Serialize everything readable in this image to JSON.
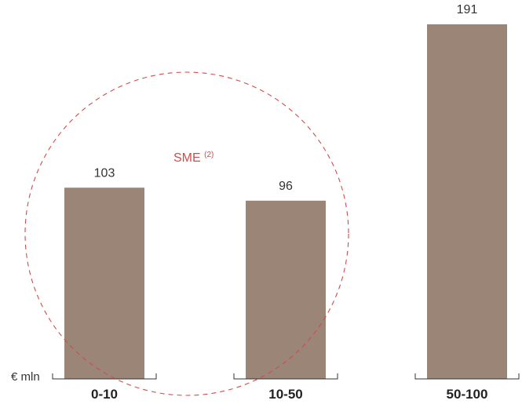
{
  "chart_data": {
    "type": "bar",
    "unit_label": "€ mln",
    "categories": [
      "0-10",
      "10-50",
      "50-100"
    ],
    "values": [
      103,
      96,
      191
    ],
    "value_labels": [
      "103",
      "96",
      "191"
    ],
    "ylim": [
      0,
      191
    ],
    "grid": false,
    "annotation": {
      "text": "SME",
      "superscript": "(2)",
      "style": "dashed-circle",
      "color": "#d24b4b",
      "encloses_categories": [
        "0-10",
        "10-50"
      ]
    }
  },
  "colors": {
    "bar": "#9a8576",
    "axis": "#333333",
    "text": "#333333",
    "annotation": "#d24b4b"
  }
}
